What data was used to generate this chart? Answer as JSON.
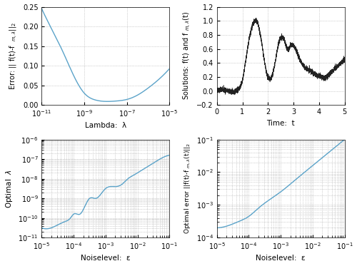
{
  "fig_width": 5.0,
  "fig_height": 3.73,
  "dpi": 100,
  "line_color": "#5ba3c9",
  "line_color_tr": "#222222",
  "background_color": "#ffffff",
  "grid_color": "#aaaaaa",
  "ax1": {
    "xlabel": "Lambda:  λ",
    "xlim_log": [
      -11,
      -5
    ],
    "ylim": [
      0,
      0.25
    ],
    "yticks": [
      0,
      0.05,
      0.1,
      0.15,
      0.2,
      0.25
    ]
  },
  "ax2": {
    "xlabel": "Time:  t",
    "xlim": [
      0,
      5
    ],
    "ylim": [
      -0.2,
      1.2
    ],
    "yticks": [
      -0.2,
      0,
      0.2,
      0.4,
      0.6,
      0.8,
      1.0,
      1.2
    ]
  },
  "ax3": {
    "xlabel": "Noiselevel:  ε",
    "xlim_log": [
      -5,
      -1
    ],
    "ylim_log": [
      -11,
      -6
    ]
  },
  "ax4": {
    "xlabel": "Noiselevel:  ε",
    "xlim_log": [
      -5,
      -1
    ],
    "ylim_log": [
      -4,
      -1
    ]
  }
}
